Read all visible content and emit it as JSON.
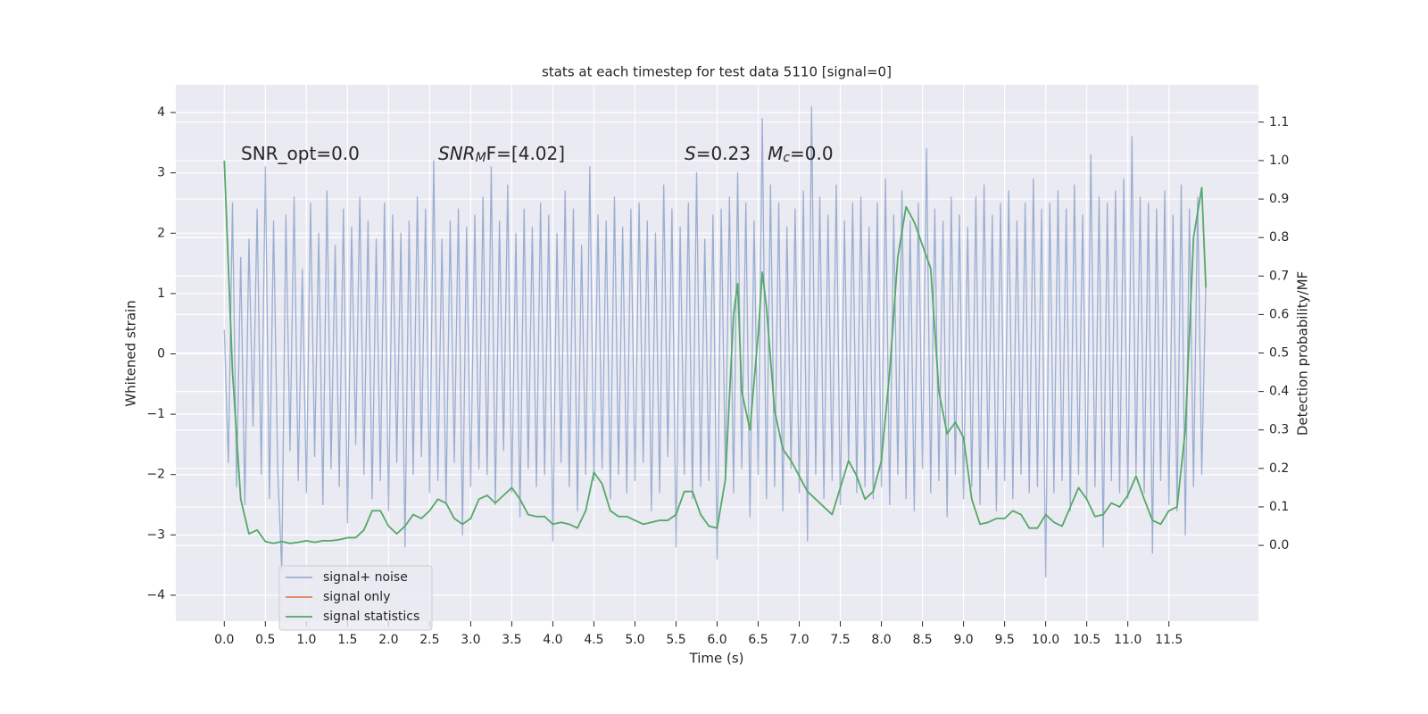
{
  "chart_data": {
    "type": "line",
    "title": "stats at each timestep for test data 5110 [signal=0]",
    "xlabel": "Time (s)",
    "ylabel": "Whitened strain",
    "y2label": "Detection probability/MF",
    "annotations": [
      {
        "parts": [
          {
            "text": "SNR_opt=0.0"
          }
        ]
      },
      {
        "parts": [
          {
            "text": "SNR",
            "style": "italic"
          },
          {
            "text": "M",
            "style": "italic-sub"
          },
          {
            "text": "F=[4.02]"
          }
        ]
      },
      {
        "parts": [
          {
            "text": "S",
            "style": "italic"
          },
          {
            "text": "=0.23   "
          },
          {
            "text": "M",
            "style": "italic"
          },
          {
            "text": "c",
            "style": "italic-sub"
          },
          {
            "text": "=0.0"
          }
        ]
      }
    ],
    "background": "#eaeaf2",
    "grid": true,
    "legend": "lower left",
    "xlim": [
      -0.59,
      12.59
    ],
    "xticks": [
      {
        "value": 0,
        "label": "0.0"
      },
      0.5,
      {
        "value": 1,
        "label": "1.0"
      },
      1.5,
      {
        "value": 2,
        "label": "2.0"
      },
      2.5,
      {
        "value": 3,
        "label": "3.0"
      },
      3.5,
      {
        "value": 4,
        "label": "4.0"
      },
      4.5,
      {
        "value": 5,
        "label": "5.0"
      },
      5.5,
      {
        "value": 6,
        "label": "6.0"
      },
      6.5,
      {
        "value": 7,
        "label": "7.0"
      },
      7.5,
      {
        "value": 8,
        "label": "8.0"
      },
      8.5,
      {
        "value": 9,
        "label": "9.0"
      },
      9.5,
      {
        "value": 10,
        "label": "10.0"
      },
      10.5,
      {
        "value": 11,
        "label": "11.0"
      },
      11.5
    ],
    "ylim": [
      -4.43,
      4.46
    ],
    "yticks": [
      {
        "value": -4,
        "label": "−4"
      },
      {
        "value": -3,
        "label": "−3"
      },
      {
        "value": -2,
        "label": "−2"
      },
      {
        "value": -1,
        "label": "−1"
      },
      0,
      1,
      2,
      3,
      4
    ],
    "y2lim": [
      -0.197,
      1.197
    ],
    "y2ticks": [
      {
        "value": 0,
        "label": "0.0"
      },
      0.1,
      0.2,
      0.3,
      0.4,
      0.5,
      0.6,
      0.7,
      0.8,
      0.9,
      {
        "value": 1,
        "label": "1.0"
      },
      1.1
    ],
    "series": [
      {
        "name": "signal+ noise",
        "color": "#4c72b0",
        "alpha": 0.5,
        "x": [
          0,
          0.05,
          0.1,
          0.15,
          0.2,
          0.25,
          0.3,
          0.35,
          0.4,
          0.45,
          0.5,
          0.55,
          0.6,
          0.65,
          0.7,
          0.75,
          0.8,
          0.85,
          0.9,
          0.95,
          1,
          1.05,
          1.1,
          1.15,
          1.2,
          1.25,
          1.3,
          1.35,
          1.4,
          1.45,
          1.5,
          1.55,
          1.6,
          1.65,
          1.7,
          1.75,
          1.8,
          1.85,
          1.9,
          1.95,
          2,
          2.05,
          2.1,
          2.15,
          2.2,
          2.25,
          2.3,
          2.35,
          2.4,
          2.45,
          2.5,
          2.55,
          2.6,
          2.65,
          2.7,
          2.75,
          2.8,
          2.85,
          2.9,
          2.95,
          3,
          3.05,
          3.1,
          3.15,
          3.2,
          3.25,
          3.3,
          3.35,
          3.4,
          3.45,
          3.5,
          3.55,
          3.6,
          3.65,
          3.7,
          3.75,
          3.8,
          3.85,
          3.9,
          3.95,
          4,
          4.05,
          4.1,
          4.15,
          4.2,
          4.25,
          4.3,
          4.35,
          4.4,
          4.45,
          4.5,
          4.55,
          4.6,
          4.65,
          4.7,
          4.75,
          4.8,
          4.85,
          4.9,
          4.95,
          5,
          5.05,
          5.1,
          5.15,
          5.2,
          5.25,
          5.3,
          5.35,
          5.4,
          5.45,
          5.5,
          5.55,
          5.6,
          5.65,
          5.7,
          5.75,
          5.8,
          5.85,
          5.9,
          5.95,
          6,
          6.05,
          6.1,
          6.15,
          6.2,
          6.25,
          6.3,
          6.35,
          6.4,
          6.45,
          6.5,
          6.55,
          6.6,
          6.65,
          6.7,
          6.75,
          6.8,
          6.85,
          6.9,
          6.95,
          7,
          7.05,
          7.1,
          7.15,
          7.2,
          7.25,
          7.3,
          7.35,
          7.4,
          7.45,
          7.5,
          7.55,
          7.6,
          7.65,
          7.7,
          7.75,
          7.8,
          7.85,
          7.9,
          7.95,
          8,
          8.05,
          8.1,
          8.15,
          8.2,
          8.25,
          8.3,
          8.35,
          8.4,
          8.45,
          8.5,
          8.55,
          8.6,
          8.65,
          8.7,
          8.75,
          8.8,
          8.85,
          8.9,
          8.95,
          9,
          9.05,
          9.1,
          9.15,
          9.2,
          9.25,
          9.3,
          9.35,
          9.4,
          9.45,
          9.5,
          9.55,
          9.6,
          9.65,
          9.7,
          9.75,
          9.8,
          9.85,
          9.9,
          9.95,
          10,
          10.05,
          10.1,
          10.15,
          10.2,
          10.25,
          10.3,
          10.35,
          10.4,
          10.45,
          10.5,
          10.55,
          10.6,
          10.65,
          10.7,
          10.75,
          10.8,
          10.85,
          10.9,
          10.95,
          11,
          11.05,
          11.1,
          11.15,
          11.2,
          11.25,
          11.3,
          11.35,
          11.4,
          11.45,
          11.5,
          11.55,
          11.6,
          11.65,
          11.7,
          11.75,
          11.8,
          11.85,
          11.9,
          11.95
        ],
        "values": [
          0.4,
          -1.8,
          2.5,
          -2.2,
          1.6,
          -2.5,
          1.9,
          -1.2,
          2.4,
          -2.0,
          3.1,
          -2.4,
          2.2,
          -1.9,
          -3.6,
          2.3,
          -1.6,
          2.6,
          -2.1,
          1.4,
          -2.3,
          2.5,
          -1.7,
          2.0,
          -2.5,
          2.7,
          -1.9,
          1.8,
          -2.2,
          2.4,
          -2.8,
          2.1,
          -1.5,
          2.6,
          -2.0,
          2.2,
          -2.4,
          1.9,
          -2.1,
          2.5,
          -2.6,
          2.3,
          -1.8,
          2.0,
          -3.2,
          2.2,
          -2.0,
          2.6,
          -1.7,
          2.4,
          -2.3,
          3.2,
          -2.1,
          1.9,
          -2.5,
          2.2,
          -1.8,
          2.4,
          -3.0,
          2.1,
          -2.2,
          2.3,
          -1.9,
          2.6,
          -2.0,
          3.1,
          -2.5,
          2.2,
          -1.6,
          2.8,
          -2.3,
          2.0,
          -2.7,
          2.4,
          -1.9,
          2.1,
          -2.2,
          2.5,
          -2.0,
          2.3,
          -3.1,
          2.0,
          -1.8,
          2.7,
          -2.2,
          2.4,
          -2.6,
          1.8,
          -2.0,
          3.1,
          -2.1,
          2.3,
          -1.9,
          2.2,
          -2.4,
          2.6,
          -2.0,
          2.1,
          -2.3,
          2.4,
          -2.1,
          2.5,
          -1.8,
          2.2,
          -2.6,
          2.0,
          -2.3,
          2.8,
          -1.7,
          2.4,
          -3.2,
          2.1,
          -2.0,
          2.5,
          -2.4,
          3.0,
          -2.2,
          1.9,
          -2.1,
          2.3,
          -3.4,
          2.4,
          -2.0,
          2.6,
          -2.3,
          3.0,
          -1.9,
          2.5,
          -2.7,
          2.2,
          -2.0,
          3.9,
          -2.4,
          2.8,
          -2.2,
          2.5,
          -2.6,
          2.1,
          -1.9,
          2.4,
          -2.3,
          2.7,
          -3.1,
          4.1,
          -2.0,
          2.6,
          -2.4,
          2.3,
          -2.1,
          2.8,
          -2.5,
          2.2,
          -1.8,
          2.5,
          -2.3,
          2.6,
          -2.2,
          2.1,
          -2.4,
          2.5,
          -2.2,
          2.9,
          -2.5,
          2.3,
          -2.0,
          2.7,
          -2.4,
          2.2,
          -2.6,
          2.5,
          -1.9,
          3.4,
          -2.3,
          2.4,
          -2.1,
          2.2,
          -2.7,
          2.6,
          -2.0,
          2.3,
          -2.4,
          2.1,
          -2.2,
          2.6,
          -2.5,
          2.8,
          -1.9,
          2.3,
          -2.6,
          2.5,
          -2.1,
          2.7,
          -2.4,
          2.2,
          -2.0,
          2.5,
          -2.3,
          2.9,
          -2.2,
          2.4,
          -3.7,
          2.5,
          -2.3,
          2.7,
          -2.1,
          2.4,
          -2.6,
          2.8,
          -2.0,
          2.3,
          -2.4,
          3.3,
          -2.2,
          2.6,
          -3.2,
          2.5,
          -2.1,
          2.7,
          -2.3,
          2.9,
          -2.4,
          3.6,
          -2.0,
          2.6,
          -2.3,
          2.5,
          -3.3,
          2.4,
          -2.1,
          2.7,
          -2.5,
          2.3,
          -2.6,
          2.8,
          -3.0,
          2.4,
          -2.2,
          2.6,
          -2.0,
          1.2
        ]
      },
      {
        "name": "signal only",
        "color": "#dd8452",
        "x": [],
        "values": []
      },
      {
        "name": "signal statistics",
        "color": "#55a868",
        "axis": "y2",
        "x": [
          0,
          0.1,
          0.2,
          0.3,
          0.4,
          0.5,
          0.6,
          0.7,
          0.8,
          0.9,
          1,
          1.1,
          1.2,
          1.3,
          1.4,
          1.5,
          1.6,
          1.7,
          1.8,
          1.9,
          2,
          2.1,
          2.2,
          2.3,
          2.4,
          2.5,
          2.6,
          2.7,
          2.8,
          2.9,
          3,
          3.1,
          3.2,
          3.3,
          3.4,
          3.5,
          3.6,
          3.7,
          3.8,
          3.9,
          4,
          4.1,
          4.2,
          4.3,
          4.4,
          4.5,
          4.6,
          4.7,
          4.8,
          4.9,
          5,
          5.1,
          5.2,
          5.3,
          5.4,
          5.5,
          5.6,
          5.7,
          5.8,
          5.9,
          6,
          6.1,
          6.2,
          6.25,
          6.3,
          6.4,
          6.5,
          6.55,
          6.6,
          6.7,
          6.8,
          6.9,
          7,
          7.1,
          7.2,
          7.3,
          7.4,
          7.5,
          7.6,
          7.7,
          7.8,
          7.9,
          8,
          8.1,
          8.2,
          8.3,
          8.4,
          8.5,
          8.6,
          8.7,
          8.8,
          8.9,
          9,
          9.1,
          9.2,
          9.3,
          9.4,
          9.5,
          9.6,
          9.7,
          9.8,
          9.9,
          10,
          10.1,
          10.2,
          10.3,
          10.4,
          10.5,
          10.6,
          10.7,
          10.8,
          10.9,
          11,
          11.1,
          11.2,
          11.3,
          11.4,
          11.5,
          11.6,
          11.7,
          11.8,
          11.9,
          11.95
        ],
        "values": [
          1.0,
          0.45,
          0.12,
          0.03,
          0.04,
          0.01,
          0.005,
          0.01,
          0.005,
          0.008,
          0.012,
          0.008,
          0.012,
          0.012,
          0.015,
          0.02,
          0.02,
          0.04,
          0.09,
          0.09,
          0.05,
          0.03,
          0.05,
          0.08,
          0.07,
          0.09,
          0.12,
          0.11,
          0.07,
          0.055,
          0.07,
          0.12,
          0.13,
          0.11,
          0.13,
          0.15,
          0.12,
          0.08,
          0.075,
          0.075,
          0.055,
          0.06,
          0.055,
          0.045,
          0.09,
          0.19,
          0.16,
          0.09,
          0.075,
          0.075,
          0.065,
          0.055,
          0.06,
          0.065,
          0.065,
          0.08,
          0.14,
          0.14,
          0.08,
          0.05,
          0.045,
          0.17,
          0.6,
          0.68,
          0.4,
          0.3,
          0.55,
          0.71,
          0.62,
          0.35,
          0.25,
          0.22,
          0.18,
          0.14,
          0.12,
          0.1,
          0.08,
          0.15,
          0.22,
          0.18,
          0.12,
          0.14,
          0.22,
          0.45,
          0.75,
          0.88,
          0.84,
          0.78,
          0.72,
          0.4,
          0.29,
          0.32,
          0.28,
          0.12,
          0.055,
          0.06,
          0.07,
          0.07,
          0.09,
          0.08,
          0.045,
          0.045,
          0.08,
          0.06,
          0.05,
          0.1,
          0.15,
          0.12,
          0.075,
          0.08,
          0.11,
          0.1,
          0.13,
          0.18,
          0.12,
          0.065,
          0.055,
          0.09,
          0.1,
          0.3,
          0.8,
          0.93,
          0.67
        ]
      }
    ]
  }
}
